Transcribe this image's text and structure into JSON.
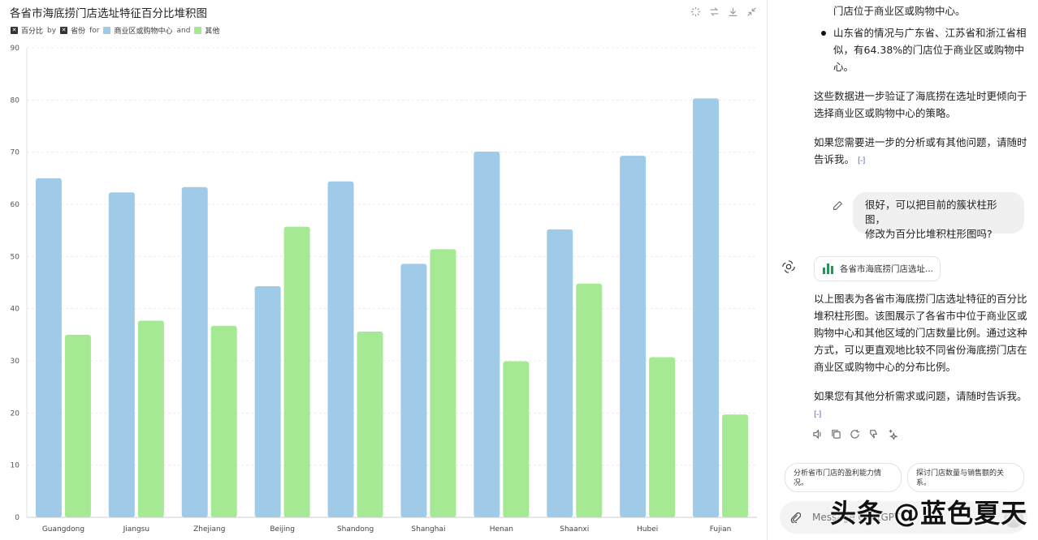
{
  "chart_panel": {
    "title": "各省市海底捞门店选址特征百分比堆积图",
    "legend": {
      "item1": "百分比",
      "by": "by",
      "item2": "省份",
      "for": "for",
      "series1": "商业区或购物中心",
      "and": "and",
      "series2": "其他"
    },
    "tools": [
      "magic-icon",
      "swap-icon",
      "download-icon",
      "collapse-icon"
    ]
  },
  "chart_data": {
    "type": "bar",
    "title": "各省市海底捞门店选址特征百分比堆积图",
    "categories": [
      "Guangdong",
      "Jiangsu",
      "Zhejiang",
      "Beijing",
      "Shandong",
      "Shanghai",
      "Henan",
      "Shaanxi",
      "Hubei",
      "Fujian"
    ],
    "series": [
      {
        "name": "商业区或购物中心",
        "color": "#9fcbe8",
        "values": [
          65,
          62.3,
          63.3,
          44.3,
          64.4,
          48.6,
          70.1,
          55.2,
          69.3,
          80.3
        ]
      },
      {
        "name": "其他",
        "color": "#a6e994",
        "values": [
          35,
          37.7,
          36.7,
          55.7,
          35.6,
          51.4,
          29.9,
          44.8,
          30.7,
          19.7
        ]
      }
    ],
    "ylim": [
      0,
      90
    ],
    "yticks": [
      0,
      10,
      20,
      30,
      40,
      50,
      60,
      70,
      80,
      90
    ],
    "grid": true,
    "legend_position": "top-left"
  },
  "chat": {
    "para_top": "门店位于商业区或购物中心。",
    "bullet_line1": "山东省的情况与广东省、江苏省和浙江省相",
    "bullet_line2": "似，有64.38%的门店位于商业区或购物中",
    "bullet_line3": "心。",
    "p2_line1": "这些数据进一步验证了海底捞在选址时更倾向于",
    "p2_line2": "选择商业区或购物中心的策略。",
    "p3_line1": "如果您需要进一步的分析或有其他问题，请随时",
    "p3_line2": "告诉我。",
    "source_icon": "[-]",
    "user_line1": "很好，可以把目前的簇状柱形图，",
    "user_line2": "修改为百分比堆积柱形图吗?",
    "chip_label": "各省市海底捞门店选址...",
    "r_line1": "以上图表为各省市海底捞门店选址特征的百分比",
    "r_line2": "堆积柱形图。该图展示了各省市中位于商业区或",
    "r_line3": "购物中心和其他区域的门店数量比例。通过这种",
    "r_line4": "方式，可以更直观地比较不同省份海底捞门店在",
    "r_line5": "商业区或购物中心的分布比例。",
    "r_end": "如果您有其他分析需求或问题，请随时告诉我。",
    "source_icon2": "[-]",
    "suggestion1_line1": "分析省市门店的盈利能力情",
    "suggestion1_line2": "况。",
    "suggestion2_line1": "探讨门店数量与销售额的关",
    "suggestion2_line2": "系。",
    "composer_placeholder": "Message ChatGPT",
    "watermark": "头条 @蓝色夏天"
  }
}
